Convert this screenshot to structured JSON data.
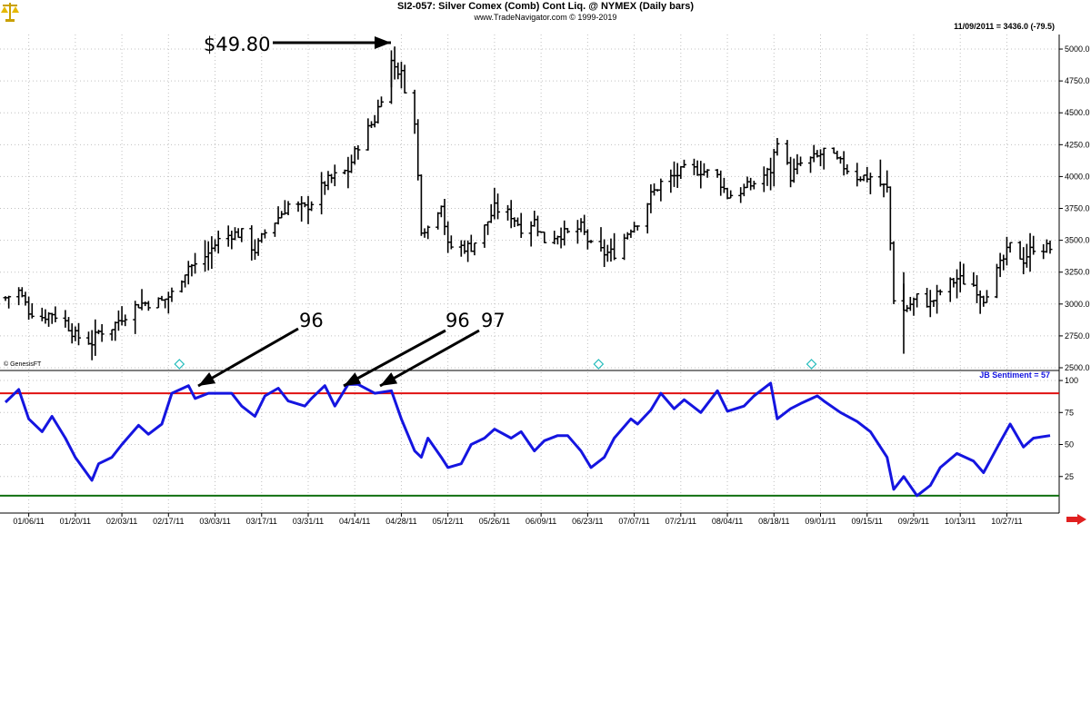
{
  "header": {
    "title": "SI2-057:  Silver Comex (Comb) Cont Liq. @ NYMEX  (Daily bars)",
    "copyright": "www.TradeNavigator.com © 1999-2019",
    "readout": "11/09/2011 = 3436.0 (-79.5)",
    "watermark": "© GenesisFT"
  },
  "colors": {
    "price_bars": "#000000",
    "sentiment_line": "#1515e0",
    "upper_line": "#e01010",
    "lower_line": "#107010",
    "grid": "#c0c0c0",
    "diamond": "#22bbbb"
  },
  "icons": {
    "logo": "gold-scales-icon",
    "scroll": "red-right-arrow-icon",
    "markers": "diamond-marker-icon"
  },
  "chart_data": [
    {
      "type": "ohlc",
      "title": "SI2-057:  Silver Comex (Comb) Cont Liq. @ NYMEX  (Daily bars)",
      "y_ticks": [
        "5000.0",
        "4750.0",
        "4500.0",
        "4250.0",
        "4000.0",
        "3750.0",
        "3500.0",
        "3250.0",
        "3000.0",
        "2750.0",
        "2500.0"
      ],
      "ylim": [
        2500,
        5100
      ],
      "x_ticks": [
        "01/06/11",
        "01/20/11",
        "02/03/11",
        "02/17/11",
        "03/03/11",
        "03/17/11",
        "03/31/11",
        "04/14/11",
        "04/28/11",
        "05/12/11",
        "05/26/11",
        "06/09/11",
        "06/23/11",
        "07/07/11",
        "07/21/11",
        "08/04/11",
        "08/18/11",
        "09/01/11",
        "09/15/11",
        "09/29/11",
        "10/13/11",
        "10/27/11"
      ],
      "grid": true,
      "close_points": [
        [
          "2010-12-30",
          3050
        ],
        [
          "2011-01-03",
          3100
        ],
        [
          "2011-01-06",
          2950
        ],
        [
          "2011-01-10",
          2900
        ],
        [
          "2011-01-13",
          2930
        ],
        [
          "2011-01-17",
          2860
        ],
        [
          "2011-01-20",
          2750
        ],
        [
          "2011-01-25",
          2700
        ],
        [
          "2011-01-27",
          2780
        ],
        [
          "2011-01-31",
          2820
        ],
        [
          "2011-02-03",
          2900
        ],
        [
          "2011-02-08",
          3000
        ],
        [
          "2011-02-11",
          3010
        ],
        [
          "2011-02-15",
          3020
        ],
        [
          "2011-02-18",
          3080
        ],
        [
          "2011-02-23",
          3300
        ],
        [
          "2011-02-25",
          3300
        ],
        [
          "2011-03-01",
          3400
        ],
        [
          "2011-03-04",
          3500
        ],
        [
          "2011-03-08",
          3550
        ],
        [
          "2011-03-11",
          3550
        ],
        [
          "2011-03-15",
          3420
        ],
        [
          "2011-03-18",
          3560
        ],
        [
          "2011-03-22",
          3680
        ],
        [
          "2011-03-25",
          3780
        ],
        [
          "2011-03-30",
          3750
        ],
        [
          "2011-04-01",
          3800
        ],
        [
          "2011-04-05",
          3950
        ],
        [
          "2011-04-08",
          4000
        ],
        [
          "2011-04-12",
          4050
        ],
        [
          "2011-04-15",
          4250
        ],
        [
          "2011-04-20",
          4450
        ],
        [
          "2011-04-25",
          4900
        ],
        [
          "2011-04-28",
          4800
        ],
        [
          "2011-05-02",
          4400
        ],
        [
          "2011-05-04",
          3600
        ],
        [
          "2011-05-06",
          3600
        ],
        [
          "2011-05-10",
          3800
        ],
        [
          "2011-05-12",
          3450
        ],
        [
          "2011-05-16",
          3450
        ],
        [
          "2011-05-19",
          3450
        ],
        [
          "2011-05-23",
          3600
        ],
        [
          "2011-05-26",
          3750
        ],
        [
          "2011-05-31",
          3700
        ],
        [
          "2011-06-03",
          3600
        ],
        [
          "2011-06-07",
          3650
        ],
        [
          "2011-06-10",
          3500
        ],
        [
          "2011-06-14",
          3550
        ],
        [
          "2011-06-17",
          3550
        ],
        [
          "2011-06-21",
          3600
        ],
        [
          "2011-06-24",
          3450
        ],
        [
          "2011-06-28",
          3400
        ],
        [
          "2011-07-01",
          3400
        ],
        [
          "2011-07-06",
          3600
        ],
        [
          "2011-07-08",
          3650
        ],
        [
          "2011-07-12",
          3850
        ],
        [
          "2011-07-15",
          3950
        ],
        [
          "2011-07-19",
          4000
        ],
        [
          "2011-07-22",
          4050
        ],
        [
          "2011-07-27",
          4050
        ],
        [
          "2011-08-01",
          4000
        ],
        [
          "2011-08-04",
          3850
        ],
        [
          "2011-08-09",
          3900
        ],
        [
          "2011-08-12",
          3950
        ],
        [
          "2011-08-17",
          4050
        ],
        [
          "2011-08-19",
          4300
        ],
        [
          "2011-08-23",
          4000
        ],
        [
          "2011-08-26",
          4100
        ],
        [
          "2011-08-31",
          4150
        ],
        [
          "2011-09-02",
          4200
        ],
        [
          "2011-09-07",
          4100
        ],
        [
          "2011-09-12",
          4000
        ],
        [
          "2011-09-16",
          4000
        ],
        [
          "2011-09-21",
          3900
        ],
        [
          "2011-09-23",
          3050
        ],
        [
          "2011-09-26",
          2950
        ],
        [
          "2011-09-30",
          3050
        ],
        [
          "2011-10-04",
          3000
        ],
        [
          "2011-10-07",
          3100
        ],
        [
          "2011-10-12",
          3200
        ],
        [
          "2011-10-17",
          3150
        ],
        [
          "2011-10-20",
          3050
        ],
        [
          "2011-10-25",
          3300
        ],
        [
          "2011-10-28",
          3450
        ],
        [
          "2011-11-01",
          3350
        ],
        [
          "2011-11-04",
          3450
        ],
        [
          "2011-11-09",
          3436
        ]
      ],
      "annotation": "$49.80"
    },
    {
      "type": "line",
      "series": [
        {
          "name": "JB Sentiment",
          "values": [
            [
              "2010-12-30",
              83
            ],
            [
              "2011-01-03",
              93
            ],
            [
              "2011-01-06",
              70
            ],
            [
              "2011-01-10",
              60
            ],
            [
              "2011-01-13",
              72
            ],
            [
              "2011-01-17",
              55
            ],
            [
              "2011-01-20",
              40
            ],
            [
              "2011-01-25",
              22
            ],
            [
              "2011-01-27",
              35
            ],
            [
              "2011-01-31",
              40
            ],
            [
              "2011-02-03",
              50
            ],
            [
              "2011-02-08",
              65
            ],
            [
              "2011-02-11",
              58
            ],
            [
              "2011-02-15",
              66
            ],
            [
              "2011-02-18",
              90
            ],
            [
              "2011-02-23",
              96
            ],
            [
              "2011-02-25",
              86
            ],
            [
              "2011-03-01",
              90
            ],
            [
              "2011-03-04",
              90
            ],
            [
              "2011-03-08",
              90
            ],
            [
              "2011-03-11",
              80
            ],
            [
              "2011-03-15",
              72
            ],
            [
              "2011-03-18",
              88
            ],
            [
              "2011-03-22",
              94
            ],
            [
              "2011-03-25",
              84
            ],
            [
              "2011-03-30",
              80
            ],
            [
              "2011-04-01",
              86
            ],
            [
              "2011-04-05",
              96
            ],
            [
              "2011-04-08",
              80
            ],
            [
              "2011-04-12",
              97
            ],
            [
              "2011-04-15",
              97
            ],
            [
              "2011-04-20",
              90
            ],
            [
              "2011-04-25",
              92
            ],
            [
              "2011-04-28",
              70
            ],
            [
              "2011-05-02",
              45
            ],
            [
              "2011-05-04",
              40
            ],
            [
              "2011-05-06",
              55
            ],
            [
              "2011-05-10",
              40
            ],
            [
              "2011-05-12",
              32
            ],
            [
              "2011-05-16",
              35
            ],
            [
              "2011-05-19",
              50
            ],
            [
              "2011-05-23",
              55
            ],
            [
              "2011-05-26",
              62
            ],
            [
              "2011-05-31",
              55
            ],
            [
              "2011-06-03",
              60
            ],
            [
              "2011-06-07",
              45
            ],
            [
              "2011-06-10",
              53
            ],
            [
              "2011-06-14",
              57
            ],
            [
              "2011-06-17",
              57
            ],
            [
              "2011-06-21",
              45
            ],
            [
              "2011-06-24",
              32
            ],
            [
              "2011-06-28",
              40
            ],
            [
              "2011-07-01",
              55
            ],
            [
              "2011-07-06",
              70
            ],
            [
              "2011-07-08",
              66
            ],
            [
              "2011-07-12",
              77
            ],
            [
              "2011-07-15",
              90
            ],
            [
              "2011-07-19",
              78
            ],
            [
              "2011-07-22",
              85
            ],
            [
              "2011-07-27",
              75
            ],
            [
              "2011-08-01",
              92
            ],
            [
              "2011-08-04",
              76
            ],
            [
              "2011-08-09",
              80
            ],
            [
              "2011-08-12",
              88
            ],
            [
              "2011-08-17",
              98
            ],
            [
              "2011-08-19",
              70
            ],
            [
              "2011-08-23",
              78
            ],
            [
              "2011-08-26",
              82
            ],
            [
              "2011-08-31",
              88
            ],
            [
              "2011-09-02",
              84
            ],
            [
              "2011-09-07",
              75
            ],
            [
              "2011-09-12",
              68
            ],
            [
              "2011-09-16",
              60
            ],
            [
              "2011-09-21",
              40
            ],
            [
              "2011-09-23",
              15
            ],
            [
              "2011-09-26",
              25
            ],
            [
              "2011-09-30",
              10
            ],
            [
              "2011-10-04",
              18
            ],
            [
              "2011-10-07",
              32
            ],
            [
              "2011-10-12",
              43
            ],
            [
              "2011-10-17",
              37
            ],
            [
              "2011-10-20",
              28
            ],
            [
              "2011-10-25",
              52
            ],
            [
              "2011-10-28",
              66
            ],
            [
              "2011-11-01",
              48
            ],
            [
              "2011-11-04",
              55
            ],
            [
              "2011-11-09",
              57
            ]
          ]
        }
      ],
      "y_ticks": [
        "100",
        "75",
        "50",
        "25"
      ],
      "ylim": [
        0,
        105
      ],
      "reference_lines": [
        90,
        10
      ],
      "label": "JB Sentiment = 57",
      "annotations": [
        "96",
        "96",
        "97"
      ]
    }
  ]
}
